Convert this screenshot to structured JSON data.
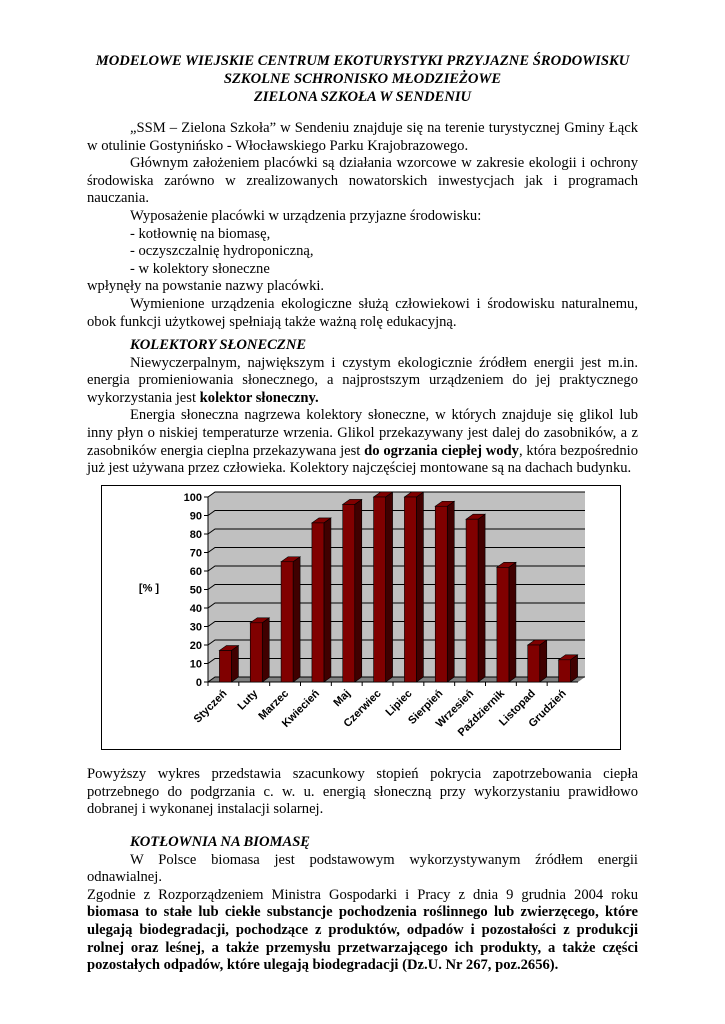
{
  "title": [
    "MODELOWE WIEJSKIE CENTRUM EKOTURYSTYKI PRZYJAZNE ŚRODOWISKU",
    "SZKOLNE SCHRONISKO MŁODZIEŻOWE",
    "ZIELONA SZKOŁA W SENDENIU"
  ],
  "intro": {
    "p1": "„SSM – Zielona Szkoła” w Sendeniu znajduje się na terenie turystycznej Gminy Łąck w otulinie Gostynińsko - Włocławskiego Parku Krajobrazowego.",
    "p2": "Głównym założeniem placówki są działania wzorcowe  w zakresie ekologii i ochrony środowiska zarówno w zrealizowanych nowatorskich inwestycjach jak i programach nauczania.",
    "p3": "Wyposażenie placówki w urządzenia przyjazne środowisku:",
    "list": [
      "- kotłownię na biomasę,",
      "- oczyszczalnię hydroponiczną,",
      "- w kolektory słoneczne"
    ],
    "p4": "wpłynęły na powstanie nazwy placówki.",
    "p5": "Wymienione urządzenia ekologiczne służą człowiekowi i środowisku naturalnemu, obok funkcji użytkowej spełniają także ważną rolę edukacyjną."
  },
  "solar": {
    "heading": "KOLEKTORY SŁONECZNE",
    "p1a": "Niewyczerpalnym, największym i czystym ekologicznie źródłem energii jest m.in. energia promieniowania słonecznego, a najprostszym urządzeniem do jej praktycznego wykorzystania jest ",
    "p1b": "kolektor słoneczny.",
    "p2a": "Energia słoneczna nagrzewa kolektory słoneczne, w których znajduje się glikol lub inny płyn o niskiej temperaturze wrzenia. Glikol przekazywany jest dalej do zasobników, a z zasobników energia cieplna przekazywana jest ",
    "p2b": "do ogrzania ciepłej wody",
    "p2c": ", która bezpośrednio już jest używana przez człowieka. Kolektory najczęściej montowane są na dachach budynku.",
    "caption": "Powyższy wykres przedstawia szacunkowy stopień pokrycia zapotrzebowania ciepła potrzebnego do podgrzania c. w. u. energią słoneczną przy wykorzystaniu prawidłowo dobranej i wykonanej instalacji solarnej."
  },
  "biomass": {
    "heading": "KOTŁOWNIA NA BIOMASĘ",
    "p1": "W Polsce biomasa jest podstawowym wykorzystywanym źródłem energii odnawialnej.",
    "p2a": "Zgodnie z Rozporządzeniem Ministra Gospodarki i Pracy z dnia 9 grudnia 2004 roku ",
    "p2b": "biomasa to stałe lub ciekłe substancje pochodzenia roślinnego lub zwierzęcego, które ulegają biodegradacji, pochodzące z produktów, odpadów i pozostałości z produkcji rolnej oraz leśnej, a także przemysłu przetwarzającego ich produkty, a także części pozostałych odpadów, które ulegają biodegradacji (Dz.U. Nr 267, poz.2656)."
  },
  "chart_data": {
    "type": "bar",
    "style": "3d-column",
    "ylabel": "[% ]",
    "ylim": [
      0,
      100
    ],
    "yticks": [
      "0",
      "10",
      "20",
      "30",
      "40",
      "50",
      "60",
      "70",
      "80",
      "90",
      "100"
    ],
    "grid": true,
    "categories": [
      "Styczeń",
      "Luty",
      "Marzec",
      "Kwiecień",
      "Maj",
      "Czerwiec",
      "Lipiec",
      "Sierpień",
      "Wrzesień",
      "Październik",
      "Listopad",
      "Grudzień"
    ],
    "values": [
      17,
      32,
      65,
      86,
      96,
      100,
      100,
      95,
      88,
      62,
      20,
      12
    ],
    "colors": {
      "bar": "#800000",
      "bar_side": "#400000",
      "plot_bg": "#c0c0c0",
      "floor": "#808080"
    }
  }
}
